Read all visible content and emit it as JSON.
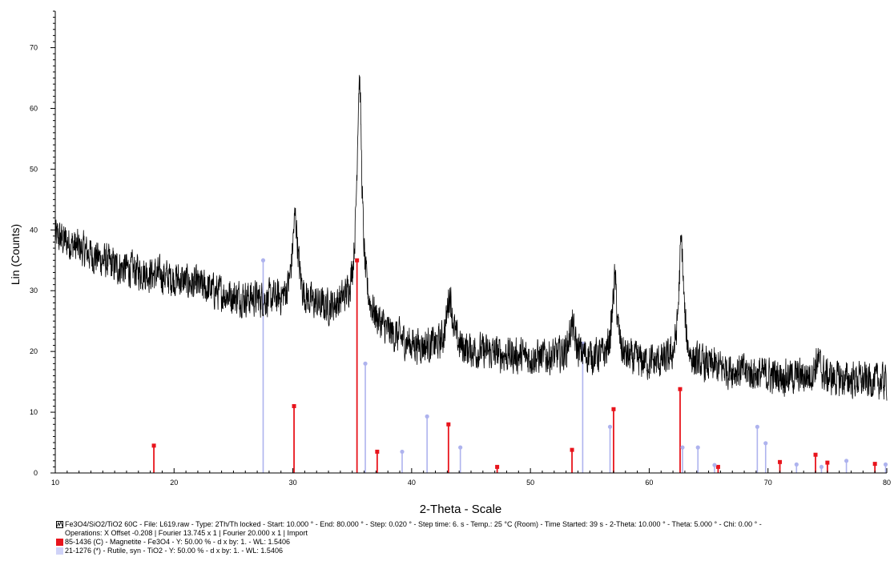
{
  "chart_data": {
    "type": "line",
    "xlabel": "2-Theta - Scale",
    "ylabel": "Lin (Counts)",
    "xlim": [
      10,
      80
    ],
    "ylim": [
      0,
      76
    ],
    "xticks": [
      10,
      20,
      30,
      40,
      50,
      60,
      70,
      80
    ],
    "yticks": [
      0,
      10,
      20,
      30,
      40,
      50,
      60,
      70
    ],
    "grid": false,
    "legend_position": "bottom",
    "series": [
      {
        "name": "Fe3O4/SiO2/TiO2 60C",
        "color": "#000000",
        "profile": {
          "baseline_points": [
            [
              10,
              39
            ],
            [
              15,
              34
            ],
            [
              20,
              32
            ],
            [
              25,
              29
            ],
            [
              30,
              28
            ],
            [
              33,
              27
            ],
            [
              35,
              28
            ],
            [
              38,
              23
            ],
            [
              40,
              21
            ],
            [
              45,
              20
            ],
            [
              50,
              19
            ],
            [
              55,
              19
            ],
            [
              60,
              18
            ],
            [
              65,
              17.5
            ],
            [
              70,
              16
            ],
            [
              75,
              15.5
            ],
            [
              80,
              15
            ]
          ],
          "peaks": [
            {
              "x": 30.2,
              "height": 14,
              "width": 0.6
            },
            {
              "x": 35.6,
              "height": 38,
              "width": 0.5
            },
            {
              "x": 43.2,
              "height": 9,
              "width": 0.6
            },
            {
              "x": 53.5,
              "height": 5,
              "width": 0.6
            },
            {
              "x": 57.1,
              "height": 13,
              "width": 0.5
            },
            {
              "x": 62.7,
              "height": 20,
              "width": 0.5
            },
            {
              "x": 74.2,
              "height": 3,
              "width": 0.6
            }
          ],
          "noise_amplitude": 2.6,
          "step": 0.02
        }
      }
    ],
    "reference_patterns": [
      {
        "name": "Magnetite",
        "color": "#e8141c",
        "x": [
          18.3,
          30.1,
          35.4,
          37.1,
          43.1,
          47.2,
          53.5,
          57.0,
          62.6,
          65.8,
          71.0,
          74.0,
          75.0,
          79.0
        ],
        "y": [
          4.5,
          11,
          35,
          3.5,
          8,
          1,
          3.8,
          10.5,
          13.8,
          1,
          1.8,
          3,
          1.7,
          1.5
        ]
      },
      {
        "name": "Rutile, syn",
        "color": "#aeb3ee",
        "x": [
          27.5,
          36.1,
          39.2,
          41.3,
          44.1,
          54.4,
          56.7,
          62.8,
          64.1,
          65.5,
          69.1,
          69.8,
          72.4,
          74.5,
          76.6,
          79.9
        ],
        "y": [
          35,
          18,
          3.5,
          9.3,
          4.2,
          21.3,
          7.6,
          4.2,
          4.2,
          1.3,
          7.6,
          4.9,
          1.4,
          1,
          2,
          1.4
        ]
      }
    ]
  },
  "legend": {
    "sample_line1": "Fe3O4/SiO2/TiO2 60C - File: L619.raw - Type: 2Th/Th locked - Start: 10.000 ° - End: 80.000 ° - Step: 0.020 ° - Step time: 6. s - Temp.: 25 °C (Room) - Time Started: 39 s - 2-Theta: 10.000 ° - Theta: 5.000 ° - Chi: 0.00 ° -",
    "sample_line2": "Operations: X Offset -0.208 | Fourier 13.745 x 1 | Fourier 20.000 x 1 | Import",
    "magnetite": "85-1436 (C) - Magnetite - Fe3O4 - Y: 50.00 % - d x by: 1. - WL: 1.5406",
    "rutile": "21-1276 (*) - Rutile, syn - TiO2 - Y: 50.00 % - d x by: 1. - WL: 1.5406"
  }
}
